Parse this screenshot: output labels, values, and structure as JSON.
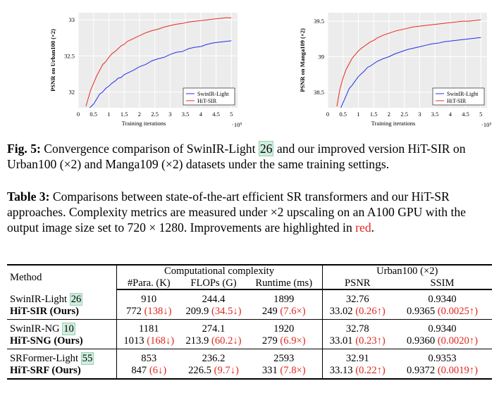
{
  "figure": {
    "caption_label": "Fig. 5:",
    "caption_pre": " Convergence comparison of SwinIR-Light ",
    "caption_cite": "26",
    "caption_post": " and our improved version HiT-SIR on Urban100 (×2) and Manga109 (×2) datasets under the same training settings."
  },
  "table_caption": {
    "label": "Table 3:",
    "text": " Comparisons between state-of-the-art efficient SR transformers and our HiT-SR approaches. Complexity metrics are measured under ×2 upscaling on an A100 GPU with the output image size set to 720 × 1280. Improvements are highlighted in ",
    "red_word": "red",
    "end": "."
  },
  "table": {
    "header": {
      "method": "Method",
      "group1": "Computational complexity",
      "group2": "Urban100 (×2)",
      "params": "#Para. (K)",
      "flops": "FLOPs (G)",
      "runtime": "Runtime (ms)",
      "psnr": "PSNR",
      "ssim": "SSIM"
    },
    "groups": [
      {
        "base": {
          "name": "SwinIR-Light ",
          "cite": "26",
          "params": "910",
          "flops": "244.4",
          "runtime": "1899",
          "psnr": "32.76",
          "ssim": "0.9340"
        },
        "ours": {
          "name": "HiT-SIR (Ours)",
          "params": "772",
          "params_d": "(138↓)",
          "flops": "209.9",
          "flops_d": "(34.5↓)",
          "runtime": "249",
          "runtime_d": "(7.6×)",
          "psnr": "33.02",
          "psnr_d": "(0.26↑)",
          "ssim": "0.9365",
          "ssim_d": "(0.0025↑)"
        }
      },
      {
        "base": {
          "name": "SwinIR-NG ",
          "cite": "10",
          "params": "1181",
          "flops": "274.1",
          "runtime": "1920",
          "psnr": "32.78",
          "ssim": "0.9340"
        },
        "ours": {
          "name": "HiT-SNG (Ours)",
          "params": "1013",
          "params_d": "(168↓)",
          "flops": "213.9",
          "flops_d": "(60.2↓)",
          "runtime": "279",
          "runtime_d": "(6.9×)",
          "psnr": "33.01",
          "psnr_d": "(0.23↑)",
          "ssim": "0.9360",
          "ssim_d": "(0.0020↑)"
        }
      },
      {
        "base": {
          "name": "SRFormer-Light ",
          "cite": "55",
          "params": "853",
          "flops": "236.2",
          "runtime": "2593",
          "psnr": "32.91",
          "ssim": "0.9353"
        },
        "ours": {
          "name": "HiT-SRF (Ours)",
          "params": "847",
          "params_d": "(6↓)",
          "flops": "226.5",
          "flops_d": "(9.7↓)",
          "runtime": "331",
          "runtime_d": "(7.8×)",
          "psnr": "33.13",
          "psnr_d": "(0.22↑)",
          "ssim": "0.9372",
          "ssim_d": "(0.0019↑)"
        }
      }
    ]
  },
  "chart_data": [
    {
      "type": "line",
      "title": "",
      "xlabel": "Training iterations",
      "x_exponent": "·10⁵",
      "ylabel": "PSNR on Urban100 (×2)",
      "xlim": [
        0,
        5.2
      ],
      "ylim": [
        31.78,
        33.1
      ],
      "xticks": [
        "0",
        "0.5",
        "1",
        "1.5",
        "2",
        "2.5",
        "3",
        "3.5",
        "4",
        "4.5",
        "5"
      ],
      "yticks": [
        "32",
        "32.5",
        "33"
      ],
      "grid": true,
      "legend": "bottom-right",
      "colors": {
        "swinir": "#1f2fe8",
        "hit": "#e8281f"
      },
      "series": [
        {
          "name": "SwinIR-Light",
          "color": "#1f2fe8",
          "x": [
            0.3,
            0.5,
            0.6,
            0.7,
            0.8,
            0.9,
            1.0,
            1.1,
            1.2,
            1.3,
            1.4,
            1.5,
            1.6,
            1.8,
            2.0,
            2.2,
            2.4,
            2.6,
            2.8,
            3.0,
            3.2,
            3.4,
            3.6,
            3.8,
            4.0,
            4.2,
            4.4,
            4.6,
            4.8,
            5.0
          ],
          "y": [
            31.75,
            31.83,
            31.9,
            31.97,
            32.0,
            32.05,
            32.08,
            32.12,
            32.15,
            32.19,
            32.2,
            32.24,
            32.26,
            32.3,
            32.35,
            32.38,
            32.43,
            32.46,
            32.48,
            32.52,
            32.55,
            32.56,
            32.6,
            32.62,
            32.63,
            32.66,
            32.68,
            32.69,
            32.7,
            32.71
          ]
        },
        {
          "name": "HiT-SIR",
          "color": "#e8281f",
          "x": [
            0.25,
            0.4,
            0.5,
            0.6,
            0.7,
            0.8,
            0.9,
            1.0,
            1.1,
            1.2,
            1.3,
            1.4,
            1.5,
            1.6,
            1.8,
            2.0,
            2.2,
            2.4,
            2.6,
            2.8,
            3.0,
            3.2,
            3.4,
            3.6,
            3.8,
            4.0,
            4.2,
            4.4,
            4.6,
            4.8,
            5.0
          ],
          "y": [
            31.8,
            32.02,
            32.12,
            32.22,
            32.3,
            32.38,
            32.42,
            32.48,
            32.53,
            32.56,
            32.6,
            32.64,
            32.66,
            32.7,
            32.74,
            32.78,
            32.82,
            32.85,
            32.87,
            32.9,
            32.92,
            32.94,
            32.95,
            32.97,
            32.98,
            32.99,
            33.0,
            33.01,
            33.02,
            33.03,
            33.03
          ]
        }
      ]
    },
    {
      "type": "line",
      "title": "",
      "xlabel": "Training iterations",
      "x_exponent": "·10⁵",
      "ylabel": "PSNR on Manga109 (×2)",
      "xlim": [
        0,
        5.2
      ],
      "ylim": [
        38.28,
        39.62
      ],
      "xticks": [
        "0",
        "0.5",
        "1",
        "1.5",
        "2",
        "2.5",
        "3",
        "3.5",
        "4",
        "4.5",
        "5"
      ],
      "yticks": [
        "38.5",
        "39",
        "39.5"
      ],
      "grid": true,
      "legend": "bottom-right",
      "colors": {
        "swinir": "#1f2fe8",
        "hit": "#e8281f"
      },
      "series": [
        {
          "name": "SwinIR-Light",
          "color": "#1f2fe8",
          "x": [
            0.4,
            0.5,
            0.6,
            0.7,
            0.8,
            0.9,
            1.0,
            1.1,
            1.2,
            1.3,
            1.4,
            1.5,
            1.6,
            1.8,
            2.0,
            2.2,
            2.4,
            2.6,
            2.8,
            3.0,
            3.2,
            3.4,
            3.6,
            3.8,
            4.0,
            4.2,
            4.4,
            4.6,
            4.8,
            5.0
          ],
          "y": [
            38.25,
            38.35,
            38.45,
            38.55,
            38.6,
            38.66,
            38.72,
            38.76,
            38.8,
            38.85,
            38.87,
            38.9,
            38.93,
            38.97,
            39.0,
            39.04,
            39.07,
            39.1,
            39.12,
            39.14,
            39.16,
            39.18,
            39.19,
            39.21,
            39.22,
            39.23,
            39.24,
            39.25,
            39.26,
            39.27
          ]
        },
        {
          "name": "HiT-SIR",
          "color": "#e8281f",
          "x": [
            0.3,
            0.4,
            0.5,
            0.6,
            0.7,
            0.8,
            0.9,
            1.0,
            1.1,
            1.2,
            1.3,
            1.4,
            1.5,
            1.6,
            1.8,
            2.0,
            2.2,
            2.4,
            2.6,
            2.8,
            3.0,
            3.2,
            3.4,
            3.6,
            3.8,
            4.0,
            4.2,
            4.4,
            4.6,
            4.8,
            5.0
          ],
          "y": [
            38.3,
            38.55,
            38.7,
            38.82,
            38.9,
            38.98,
            39.03,
            39.08,
            39.12,
            39.15,
            39.18,
            39.21,
            39.23,
            39.26,
            39.3,
            39.33,
            39.36,
            39.38,
            39.4,
            39.42,
            39.43,
            39.44,
            39.45,
            39.46,
            39.47,
            39.48,
            39.49,
            39.5,
            39.5,
            39.51,
            39.52
          ]
        }
      ]
    }
  ]
}
